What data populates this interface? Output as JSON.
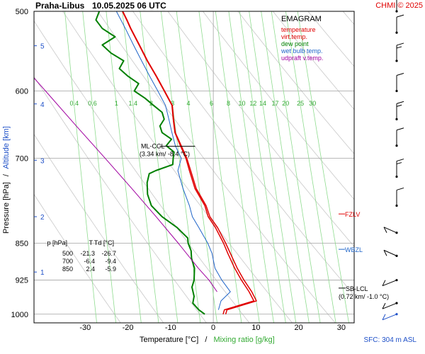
{
  "header": {
    "station": "Praha-Libus",
    "datetime": "10.05.2025 06 UTC",
    "copyright": "CHMI © 2025"
  },
  "footer": {
    "sfc_label": "SFC: 304 m ASL"
  },
  "chart_data": {
    "type": "line",
    "title": "EMAGRAM",
    "xlabel": "Temperature [°C]",
    "xlabel_sep": "/",
    "xlabel_mixing": "Mixing ratio [g/kg]",
    "ylabel_pressure": "Pressure [hPa]",
    "ylabel_sep": "/",
    "ylabel_altitude": "Altitude [km]",
    "x_ticks": [
      -30,
      -20,
      -10,
      0,
      10,
      20,
      30
    ],
    "xlim": [
      -42,
      33
    ],
    "p_ticks": [
      500,
      600,
      700,
      850,
      925,
      1000
    ],
    "ylim_hpa": [
      500,
      1020
    ],
    "log_pressure": true,
    "alt_ticks": [
      {
        "km": "1",
        "p": 908
      },
      {
        "km": "2",
        "p": 800
      },
      {
        "km": "3",
        "p": 703
      },
      {
        "km": "4",
        "p": 618
      },
      {
        "km": "5",
        "p": 541
      }
    ],
    "mixing_ratio_labels": [
      "0.4",
      "0.6",
      "1",
      "1.4",
      "2",
      "3",
      "4",
      "6",
      "8",
      "10",
      "12",
      "14",
      "17",
      "20",
      "25",
      "30"
    ],
    "mixing_ratio_values": [
      0.4,
      0.6,
      1,
      1.4,
      2,
      3,
      4,
      6,
      8,
      10,
      12,
      14,
      17,
      20,
      25,
      30
    ],
    "mixing_ratio_label_p": 620,
    "legend": [
      {
        "name": "temperature",
        "color": "#e00000"
      },
      {
        "name": "virt.temp.",
        "color": "#e00000"
      },
      {
        "name": "dew point",
        "color": "#008000"
      },
      {
        "name": "wet bulb temp.",
        "color": "#1e64c8"
      },
      {
        "name": "udpraft v.temp.",
        "color": "#a000a0"
      }
    ],
    "series": [
      {
        "name": "temperature",
        "color": "#e00000",
        "points": [
          [
            1000,
            2.3
          ],
          [
            990,
            2.6
          ],
          [
            970,
            9.5
          ],
          [
            950,
            8.4
          ],
          [
            925,
            6.6
          ],
          [
            900,
            5.0
          ],
          [
            870,
            3.4
          ],
          [
            850,
            2.4
          ],
          [
            820,
            0.5
          ],
          [
            800,
            -1.2
          ],
          [
            780,
            -2.0
          ],
          [
            750,
            -4.3
          ],
          [
            720,
            -5.6
          ],
          [
            700,
            -6.4
          ],
          [
            680,
            -7.7
          ],
          [
            660,
            -9.0
          ],
          [
            640,
            -9.4
          ],
          [
            620,
            -9.7
          ],
          [
            600,
            -11.5
          ],
          [
            580,
            -13.4
          ],
          [
            560,
            -15.5
          ],
          [
            540,
            -17.4
          ],
          [
            520,
            -19.4
          ],
          [
            510,
            -20.3
          ],
          [
            500,
            -21.3
          ]
        ]
      },
      {
        "name": "virt.temp.",
        "color": "#e00000",
        "points": [
          [
            1000,
            2.9
          ],
          [
            990,
            3.2
          ],
          [
            970,
            10.1
          ],
          [
            950,
            9.0
          ],
          [
            925,
            7.2
          ],
          [
            900,
            5.6
          ],
          [
            870,
            4.0
          ],
          [
            850,
            2.9
          ],
          [
            820,
            1.0
          ],
          [
            800,
            -0.8
          ],
          [
            780,
            -1.7
          ],
          [
            750,
            -4.0
          ],
          [
            720,
            -5.3
          ],
          [
            700,
            -6.2
          ],
          [
            680,
            -7.5
          ],
          [
            660,
            -8.9
          ],
          [
            640,
            -9.3
          ],
          [
            620,
            -9.6
          ],
          [
            600,
            -11.4
          ],
          [
            580,
            -13.3
          ],
          [
            560,
            -15.4
          ],
          [
            540,
            -17.3
          ],
          [
            520,
            -19.3
          ],
          [
            510,
            -20.2
          ],
          [
            500,
            -21.2
          ]
        ]
      },
      {
        "name": "dew point",
        "color": "#008000",
        "points": [
          [
            1000,
            -2.0
          ],
          [
            990,
            -3.4
          ],
          [
            975,
            -4.8
          ],
          [
            960,
            -4.5
          ],
          [
            940,
            -5.0
          ],
          [
            925,
            -4.5
          ],
          [
            900,
            -4.4
          ],
          [
            880,
            -5.1
          ],
          [
            865,
            -5.2
          ],
          [
            850,
            -5.9
          ],
          [
            840,
            -6.0
          ],
          [
            820,
            -8.5
          ],
          [
            800,
            -12.0
          ],
          [
            780,
            -14.5
          ],
          [
            760,
            -15.4
          ],
          [
            740,
            -15.5
          ],
          [
            725,
            -15.0
          ],
          [
            720,
            -13.5
          ],
          [
            710,
            -9.5
          ],
          [
            700,
            -9.4
          ],
          [
            690,
            -9.2
          ],
          [
            680,
            -11.0
          ],
          [
            670,
            -9.8
          ],
          [
            660,
            -12.0
          ],
          [
            650,
            -12.5
          ],
          [
            640,
            -11.5
          ],
          [
            630,
            -12.0
          ],
          [
            620,
            -14.0
          ],
          [
            610,
            -16.0
          ],
          [
            600,
            -18.5
          ],
          [
            590,
            -17.5
          ],
          [
            580,
            -20.0
          ],
          [
            570,
            -22.0
          ],
          [
            560,
            -21.0
          ],
          [
            550,
            -24.0
          ],
          [
            540,
            -26.0
          ],
          [
            530,
            -23.0
          ],
          [
            520,
            -26.0
          ],
          [
            510,
            -27.5
          ],
          [
            500,
            -26.7
          ]
        ]
      },
      {
        "name": "wet bulb temp.",
        "color": "#1e64c8",
        "points": [
          [
            990,
            1.2
          ],
          [
            970,
            1.8
          ],
          [
            950,
            4.0
          ],
          [
            925,
            2.0
          ],
          [
            900,
            0.4
          ],
          [
            870,
            -0.3
          ],
          [
            850,
            -1.3
          ],
          [
            820,
            -3.4
          ],
          [
            800,
            -4.9
          ],
          [
            780,
            -5.6
          ],
          [
            750,
            -7.1
          ],
          [
            720,
            -8.3
          ],
          [
            700,
            -7.5
          ],
          [
            680,
            -8.9
          ],
          [
            660,
            -9.7
          ],
          [
            640,
            -10.4
          ],
          [
            620,
            -11.2
          ],
          [
            600,
            -13.0
          ],
          [
            580,
            -14.9
          ],
          [
            560,
            -16.8
          ],
          [
            540,
            -18.7
          ],
          [
            520,
            -20.6
          ],
          [
            500,
            -22.7
          ]
        ]
      },
      {
        "name": "udpraft v.temp.",
        "color": "#a000a0",
        "points": [
          [
            950,
            0.9
          ],
          [
            925,
            -1.0
          ],
          [
            900,
            -3.5
          ],
          [
            850,
            -8.2
          ],
          [
            800,
            -13.4
          ],
          [
            750,
            -19.1
          ],
          [
            700,
            -25.3
          ],
          [
            650,
            -32.1
          ],
          [
            600,
            -39.3
          ],
          [
            550,
            -47.2
          ],
          [
            500,
            -56.0
          ]
        ]
      }
    ],
    "annotations": [
      {
        "name": "ml-ccl",
        "text": "ML-CCL",
        "detail": "(3.34 km/ -8.4 °C)",
        "p": 681,
        "t": -8.4
      },
      {
        "name": "fzlv",
        "text": "FZLV",
        "p": 795,
        "color": "#e00000"
      },
      {
        "name": "wbzl",
        "text": "WBZL",
        "p": 862,
        "color": "#1e64c8"
      },
      {
        "name": "sb-lcl",
        "text": "SB-LCL",
        "detail": "(0.72 km/ -1.0 °C)",
        "p": 942,
        "color": "#000000"
      }
    ],
    "table": {
      "headers": [
        "p [hPa]",
        "T",
        "Td [°C]"
      ],
      "rows": [
        [
          "500",
          "-21.3",
          "-26.7"
        ],
        [
          "700",
          "-6.4",
          "-9.4"
        ],
        [
          "850",
          "2.4",
          "-5.9"
        ]
      ]
    },
    "wind_levels_hpa": [
      1000,
      975,
      925,
      875,
      830,
      780,
      730,
      680,
      640,
      600,
      560,
      525,
      500
    ]
  }
}
